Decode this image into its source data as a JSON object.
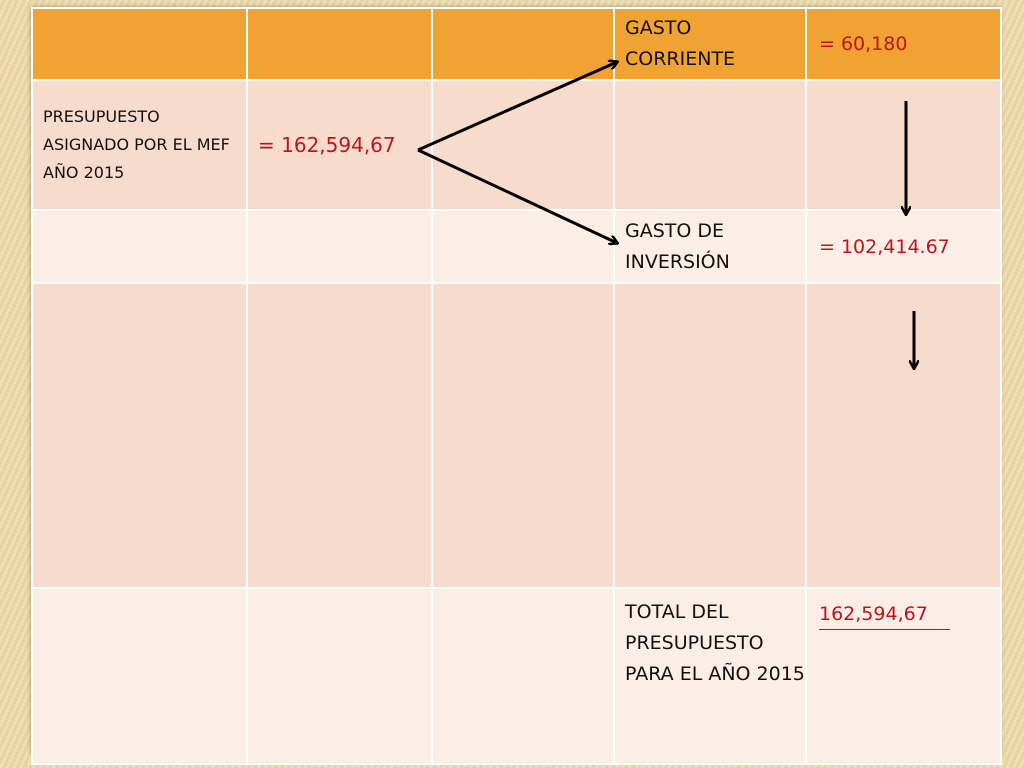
{
  "table": {
    "header_row": {
      "label": "GASTO CORRIENTE",
      "value": "= 60,180"
    },
    "row_budget": {
      "label": "PRESUPUESTO ASIGNADO POR EL MEF AÑO 2015",
      "value": "= 162,594,67"
    },
    "row_investment": {
      "label": "GASTO DE INVERSIÓN",
      "value": "= 102,414.67"
    },
    "row_total": {
      "label": "TOTAL DEL PRESUPUESTO PARA EL AÑO 2015",
      "value": "162,594,67"
    }
  },
  "colors": {
    "header": "#f0a232",
    "row_dark": "#f7dccd",
    "row_light": "#fbeee6",
    "value_text": "#c0141c"
  }
}
